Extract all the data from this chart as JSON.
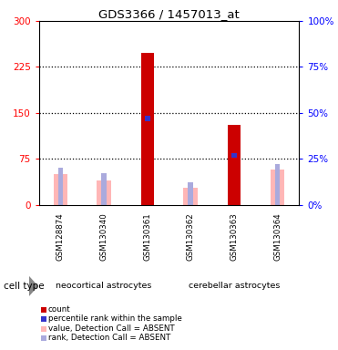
{
  "title": "GDS3366 / 1457013_at",
  "samples": [
    "GSM128874",
    "GSM130340",
    "GSM130361",
    "GSM130362",
    "GSM130363",
    "GSM130364"
  ],
  "groups": [
    {
      "name": "neocortical astrocytes",
      "indices": [
        0,
        1,
        2
      ],
      "color": "#7FD47F"
    },
    {
      "name": "cerebellar astrocytes",
      "indices": [
        3,
        4,
        5
      ],
      "color": "#00CC00"
    }
  ],
  "left_ylim": [
    0,
    300
  ],
  "right_ylim": [
    0,
    100
  ],
  "left_yticks": [
    0,
    75,
    150,
    225,
    300
  ],
  "right_yticks": [
    0,
    25,
    50,
    75,
    100
  ],
  "left_yticklabels": [
    "0",
    "75",
    "150",
    "225",
    "300"
  ],
  "right_yticklabels": [
    "0%",
    "25%",
    "50%",
    "75%",
    "100%"
  ],
  "count_values": [
    0,
    0,
    248,
    0,
    130,
    0
  ],
  "percentile_values": [
    0,
    0,
    47,
    0,
    27,
    0
  ],
  "absent_value_values": [
    50,
    40,
    0,
    27,
    0,
    57
  ],
  "absent_rank_values": [
    20,
    17,
    0,
    12,
    0,
    22
  ],
  "count_color": "#CC0000",
  "percentile_color": "#3333CC",
  "absent_value_color": "#FFB6B6",
  "absent_rank_color": "#AAAADD",
  "bar_width": 0.22,
  "bg_color": "#D3D3D3",
  "legend_items": [
    {
      "label": "count",
      "color": "#CC0000"
    },
    {
      "label": "percentile rank within the sample",
      "color": "#3333CC"
    },
    {
      "label": "value, Detection Call = ABSENT",
      "color": "#FFB6B6"
    },
    {
      "label": "rank, Detection Call = ABSENT",
      "color": "#AAAADD"
    }
  ]
}
